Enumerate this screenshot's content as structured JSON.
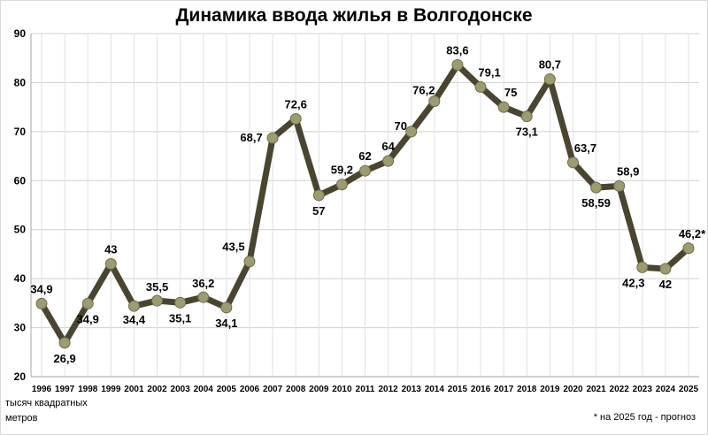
{
  "chart_data": {
    "type": "line",
    "title": "Динамика ввода жилья в Волгодонске",
    "ylabel": "тысяч квадратных\nметров",
    "footnote": "* на 2025 год - прогноз",
    "ylim": [
      20,
      90
    ],
    "yticks": [
      20,
      30,
      40,
      50,
      60,
      70,
      80,
      90
    ],
    "grid": true,
    "line_color": "#4a4530",
    "marker_color": "#9c9c6e",
    "categories": [
      "1996",
      "1997",
      "1998",
      "1999",
      "2001",
      "2002",
      "2003",
      "2004",
      "2005",
      "2006",
      "2007",
      "2008",
      "2009",
      "2010",
      "2011",
      "2012",
      "2013",
      "2014",
      "2015",
      "2016",
      "2017",
      "2018",
      "2019",
      "2020",
      "2021",
      "2022",
      "2023",
      "2024",
      "2025"
    ],
    "values": [
      34.9,
      26.9,
      34.9,
      43,
      34.4,
      35.5,
      35.1,
      36.2,
      34.1,
      43.5,
      68.7,
      72.6,
      57,
      59.2,
      62,
      64,
      70,
      76.2,
      83.6,
      79.1,
      75,
      73.1,
      80.7,
      63.7,
      58.59,
      58.9,
      42.3,
      42,
      46.2
    ],
    "data_labels": [
      "34,9",
      "26,9",
      "34,9",
      "43",
      "34,4",
      "35,5",
      "35,1",
      "36,2",
      "34,1",
      "43,5",
      "68,7",
      "72,6",
      "57",
      "59,2",
      "62",
      "64",
      "70",
      "76,2",
      "83,6",
      "79,1",
      "75",
      "73,1",
      "80,7",
      "63,7",
      "58,59",
      "58,9",
      "42,3",
      "42",
      "46,2*"
    ]
  }
}
